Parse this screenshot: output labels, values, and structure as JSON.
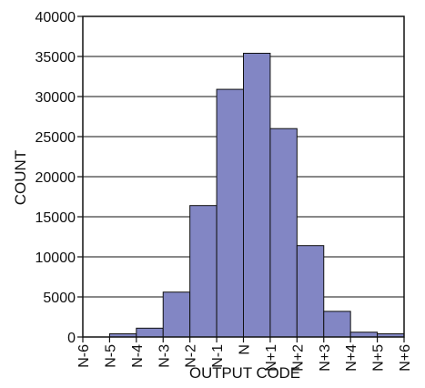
{
  "chart_data": {
    "type": "bar",
    "title": "",
    "xlabel": "OUTPUT CODE",
    "ylabel": "COUNT",
    "categories": [
      "N-6",
      "N-5",
      "N-4",
      "N-3",
      "N-2",
      "N-1",
      "N",
      "N+1",
      "N+2",
      "N+3",
      "N+4",
      "N+5",
      "N+6"
    ],
    "values": [
      0,
      400,
      1100,
      5600,
      16400,
      30900,
      35400,
      26000,
      11400,
      3200,
      600,
      400,
      0
    ],
    "ylim": [
      0,
      40000
    ],
    "yticks": [
      0,
      5000,
      10000,
      15000,
      20000,
      25000,
      30000,
      35000,
      40000
    ],
    "grid": true,
    "legend": "none",
    "colors": {
      "bar_fill": "#8286c4",
      "bar_stroke": "#111111",
      "grid": "#111111",
      "axis": "#111111",
      "text": "#111111"
    }
  }
}
